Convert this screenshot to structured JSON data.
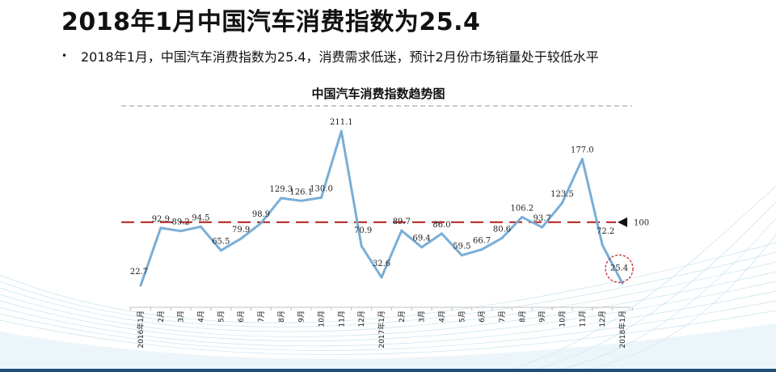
{
  "header": {
    "title": "2018年1月中国汽车消费指数为25.4",
    "bullet": "2018年1月，中国汽车消费指数为25.4，消费需求低迷，预计2月份市场销量处于较低水平"
  },
  "chart_data": {
    "type": "line",
    "title": "中国汽车消费指数趋势图",
    "categories": [
      "2016年1月",
      "2月",
      "3月",
      "4月",
      "5月",
      "6月",
      "7月",
      "8月",
      "9月",
      "10月",
      "11月",
      "12月",
      "2017年1月",
      "2月",
      "3月",
      "4月",
      "5月",
      "6月",
      "7月",
      "8月",
      "9月",
      "10月",
      "11月",
      "12月",
      "2018年1月"
    ],
    "series": [
      {
        "name": "中国汽车消费指数",
        "values": [
          22.7,
          92.9,
          89.2,
          94.5,
          65.5,
          79.9,
          98.9,
          129.3,
          126.1,
          130.0,
          211.1,
          70.9,
          32.6,
          89.7,
          69.4,
          86.0,
          59.5,
          66.7,
          80.6,
          106.2,
          93.7,
          123.5,
          177.0,
          72.2,
          25.4
        ],
        "labels": [
          "22.7",
          "92.9",
          "89.2",
          "94.5",
          "65.5",
          "79.9",
          "98.9",
          "129.3",
          "126.1",
          "130.0",
          "211.1",
          "70.9",
          "32.6",
          "89.7",
          "69.4",
          "86.0",
          "59.5",
          "66.7",
          "80.6",
          "106.2",
          "93.7",
          "123.5",
          "177.0",
          "72.2",
          "25.4"
        ]
      }
    ],
    "reference_line": {
      "value": 100,
      "label": "100"
    },
    "highlight_index": 24,
    "ylim": [
      0,
      235
    ],
    "grid": false,
    "legend": "none",
    "colors": {
      "line": "#7aaed6",
      "reference": "#b01c1c",
      "highlight": "#c62828",
      "top_rule": "#a6a6a6",
      "marker": "#111111"
    }
  }
}
